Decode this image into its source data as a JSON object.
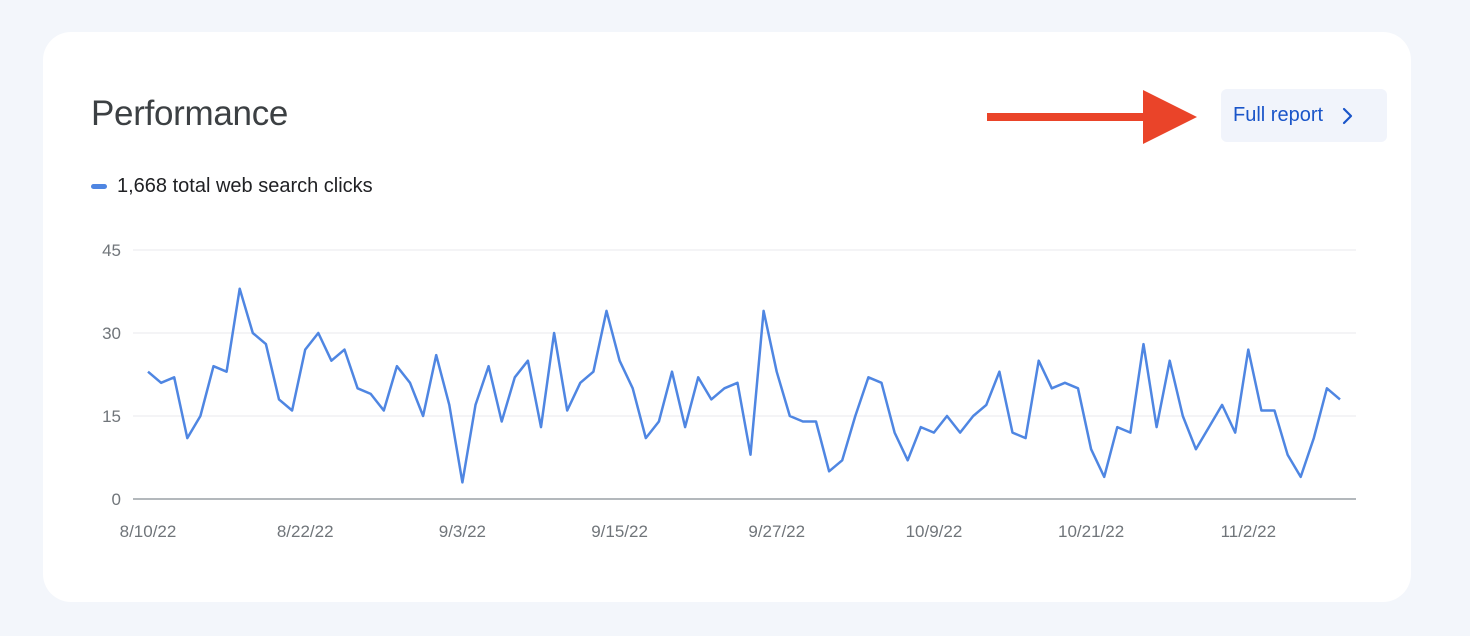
{
  "card": {
    "title": "Performance",
    "full_report_label": "Full report"
  },
  "colors": {
    "series": "#4f86e2",
    "arrow": "#ea4429",
    "button_bg": "#f1f4fb",
    "button_text": "#1a55c9"
  },
  "icons": {
    "chevron": "chevron-right-icon",
    "arrow": "red-arrow-icon"
  },
  "legend": {
    "label": "1,668 total web search clicks"
  },
  "chart_data": {
    "type": "line",
    "title": "",
    "xlabel": "",
    "ylabel": "",
    "ylim": [
      0,
      45
    ],
    "yticks": [
      "0",
      "15",
      "30",
      "45"
    ],
    "xticks": [
      "8/10/22",
      "8/22/22",
      "9/3/22",
      "9/15/22",
      "9/27/22",
      "10/9/22",
      "10/21/22",
      "11/2/22"
    ],
    "grid": true,
    "series": [
      {
        "values": [
          23,
          21,
          22,
          11,
          15,
          24,
          23,
          38,
          30,
          28,
          18,
          16,
          27,
          30,
          25,
          27,
          20,
          19,
          16,
          24,
          21,
          15,
          26,
          17,
          3,
          17,
          24,
          14,
          22,
          25,
          13,
          30,
          16,
          21,
          23,
          34,
          25,
          20,
          11,
          14,
          23,
          13,
          22,
          18,
          20,
          21,
          8,
          34,
          23,
          15,
          14,
          14,
          5,
          7,
          15,
          22,
          21,
          12,
          7,
          13,
          12,
          15,
          12,
          15,
          17,
          23,
          12,
          11,
          25,
          20,
          21,
          20,
          9,
          4,
          13,
          12,
          28,
          13,
          25,
          15,
          9,
          13,
          17,
          12,
          27,
          16,
          16,
          8,
          4,
          11,
          20,
          18
        ]
      }
    ]
  }
}
